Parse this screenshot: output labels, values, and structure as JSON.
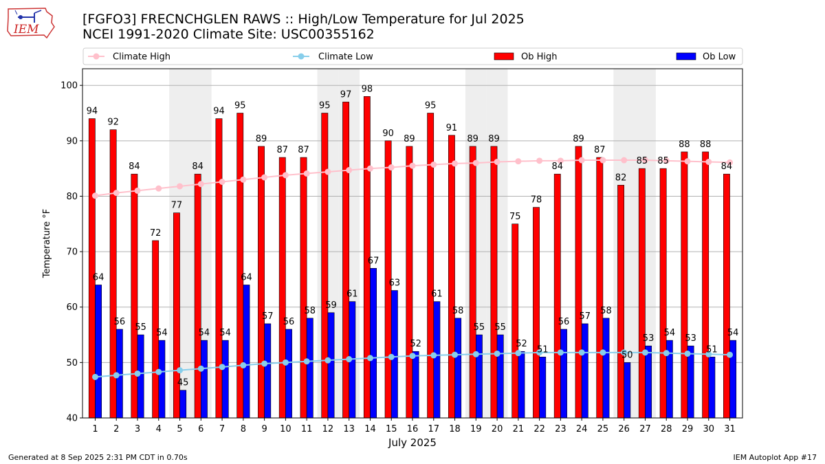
{
  "header": {
    "title_line1": "[FGFO3] FRECNCHGLEN RAWS :: High/Low Temperature for Jul 2025",
    "title_line2": "NCEI 1991-2020 Climate Site: USC00355162",
    "logo_text": "IEM"
  },
  "footer": {
    "generated": "Generated at 8 Sep 2025 2:31 PM CDT in 0.70s",
    "app": "IEM Autoplot App #17"
  },
  "chart_data": {
    "type": "bar",
    "title": "[FGFO3] FRECNCHGLEN RAWS :: High/Low Temperature for Jul 2025",
    "subtitle": "NCEI 1991-2020 Climate Site: USC00355162",
    "xlabel": "July 2025",
    "ylabel": "Temperature °F",
    "ylim": [
      40,
      103
    ],
    "yticks": [
      40,
      50,
      60,
      70,
      80,
      90,
      100
    ],
    "categories": [
      "1",
      "2",
      "3",
      "4",
      "5",
      "6",
      "7",
      "8",
      "9",
      "10",
      "11",
      "12",
      "13",
      "14",
      "15",
      "16",
      "17",
      "18",
      "19",
      "20",
      "21",
      "22",
      "23",
      "24",
      "25",
      "26",
      "27",
      "28",
      "29",
      "30",
      "31"
    ],
    "weekend_shading_days": [
      5,
      6,
      12,
      13,
      19,
      20,
      26,
      27
    ],
    "grid": "horizontal",
    "legend_placement": "top",
    "series": [
      {
        "name": "Climate High",
        "kind": "line",
        "color": "#ffc0cb",
        "values": [
          80.1,
          80.6,
          81.0,
          81.4,
          81.8,
          82.2,
          82.6,
          83.0,
          83.4,
          83.8,
          84.1,
          84.4,
          84.7,
          85.0,
          85.2,
          85.5,
          85.7,
          85.9,
          86.0,
          86.2,
          86.3,
          86.4,
          86.4,
          86.5,
          86.5,
          86.5,
          86.5,
          86.4,
          86.3,
          86.2,
          86.1
        ]
      },
      {
        "name": "Climate Low",
        "kind": "line",
        "color": "#87ceeb",
        "values": [
          47.4,
          47.7,
          48.0,
          48.3,
          48.6,
          48.9,
          49.2,
          49.5,
          49.8,
          50.0,
          50.2,
          50.4,
          50.6,
          50.8,
          51.0,
          51.2,
          51.3,
          51.4,
          51.5,
          51.6,
          51.7,
          51.8,
          51.8,
          51.8,
          51.8,
          51.8,
          51.8,
          51.7,
          51.6,
          51.5,
          51.4
        ]
      },
      {
        "name": "Ob High",
        "kind": "bar",
        "color": "#ff0000",
        "values": [
          94,
          92,
          84,
          72,
          77,
          84,
          94,
          95,
          89,
          87,
          87,
          95,
          97,
          98,
          90,
          89,
          95,
          91,
          89,
          89,
          75,
          78,
          84,
          89,
          87,
          82,
          85,
          85,
          88,
          88,
          84
        ]
      },
      {
        "name": "Ob Low",
        "kind": "bar",
        "color": "#0000ff",
        "values": [
          64,
          56,
          55,
          54,
          45,
          54,
          54,
          64,
          57,
          56,
          58,
          59,
          61,
          67,
          63,
          52,
          61,
          58,
          55,
          55,
          52,
          51,
          56,
          57,
          58,
          50,
          53,
          54,
          53,
          51,
          54
        ]
      }
    ]
  }
}
